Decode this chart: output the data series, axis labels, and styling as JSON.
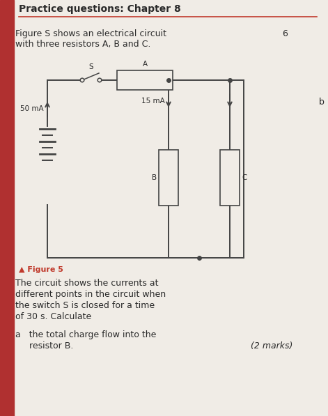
{
  "title": "Practice questions: Chapter 8",
  "title_color": "#2a2a2a",
  "header_bar_color": "#c0392b",
  "background_color": "#f0ece6",
  "text_intro_line1": "Figure S shows an electrical circuit",
  "text_intro_line2": "with three resistors A, B and C.",
  "question_number": "6",
  "figure_label": "▲ Figure 5",
  "figure_label_color": "#c0392b",
  "body_text_line1": "The circuit shows the currents at",
  "body_text_line2": "different points in the circuit when",
  "body_text_line3": "the switch S is closed for a time",
  "body_text_line4": "of 30 s. Calculate",
  "sub_q_line1": "a   the total charge flow into the",
  "sub_q_line2": "     resistor B.",
  "marks_text": "(2 marks)",
  "current_50mA": "50 mA",
  "current_15mA": "15 mA",
  "switch_label": "S",
  "resistor_A_label": "A",
  "resistor_B_label": "B",
  "resistor_C_label": "C",
  "circuit_color": "#444444",
  "font_size_title": 10,
  "font_size_body": 9,
  "font_size_circuit": 7.5,
  "header_bar_width": 20,
  "left_bar_color": "#b03030"
}
